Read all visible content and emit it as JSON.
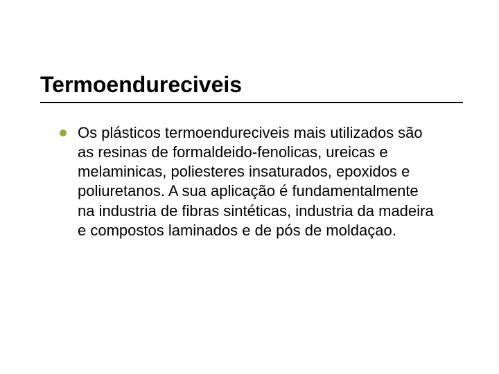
{
  "slide": {
    "title": "Termoendureciveis",
    "title_color": "#000000",
    "title_fontsize": 32,
    "rule_color": "#000000",
    "body_fontsize": 22,
    "body_color": "#000000",
    "bullet_color": "#99a933",
    "bullets": [
      {
        "text": "Os plásticos termoendureciveis mais utilizados são as resinas de formaldeido-fenolicas, ureicas e melaminicas, poliesteres insaturados, epoxidos e poliuretanos. A sua aplicação é fundamentalmente na industria de fibras sintéticas, industria da madeira e compostos laminados e de pós de moldaçao."
      }
    ],
    "background_color": "#ffffff"
  }
}
